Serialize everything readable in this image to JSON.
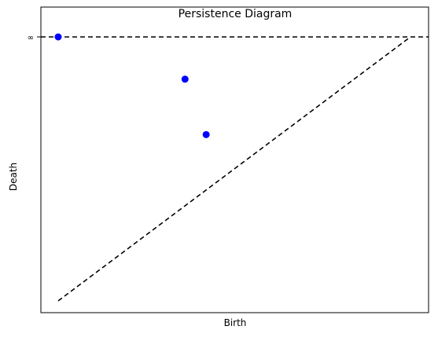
{
  "chart_data": {
    "type": "scatter",
    "title": "Persistence Diagram",
    "xlabel": "Birth",
    "ylabel": "Death",
    "xlim": [
      0,
      1
    ],
    "ylim": [
      0,
      1
    ],
    "grid": false,
    "y_tick_labels": [
      "∞"
    ],
    "points": [
      {
        "x": 0.0,
        "y": 1.0
      },
      {
        "x": 0.36,
        "y": 0.84
      },
      {
        "x": 0.42,
        "y": 0.63
      }
    ],
    "point_color": "#0000ff",
    "reference_lines": [
      {
        "kind": "diagonal",
        "style": "dashed",
        "color": "#000000"
      },
      {
        "kind": "infinity",
        "style": "dashed",
        "color": "#000000"
      }
    ]
  }
}
